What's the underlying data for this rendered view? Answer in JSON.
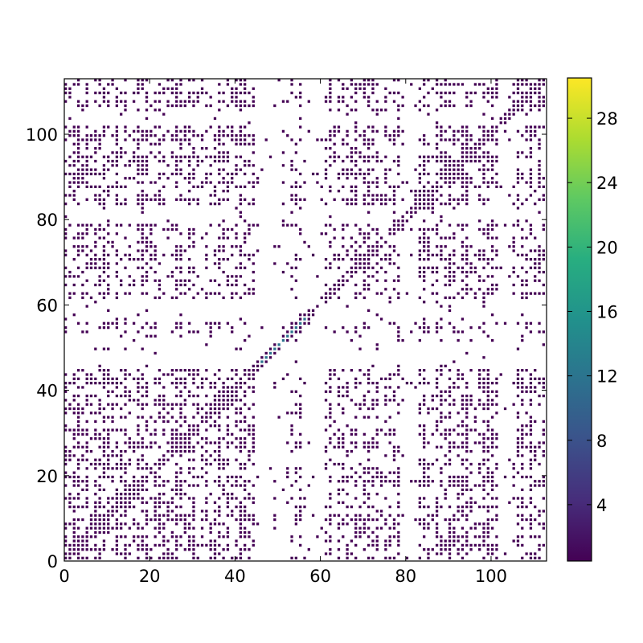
{
  "chart_data": {
    "type": "heatmap",
    "title": "",
    "xlabel": "",
    "ylabel": "",
    "xlim": [
      0,
      113
    ],
    "ylim": [
      0,
      113
    ],
    "xticks": [
      0,
      20,
      40,
      60,
      80,
      100
    ],
    "yticks": [
      0,
      20,
      40,
      60,
      80,
      100
    ],
    "colorbar": {
      "range": [
        0.5,
        30.5
      ],
      "ticks": [
        4,
        8,
        12,
        16,
        20,
        24,
        28
      ],
      "colormap": "viridis"
    },
    "background_color": "#ffffff",
    "dominant_cell_color": "#440154",
    "description_of_values": "Symmetric recurrence-style matrix; most plotted cells have value ~1, sparse larger values near the diagonal",
    "dense_blocks": [
      {
        "x": [
          25,
          29
        ],
        "y": [
          25,
          29
        ]
      },
      {
        "x": [
          55,
          57
        ],
        "y": [
          55,
          57
        ]
      },
      {
        "x": [
          82,
          86
        ],
        "y": [
          82,
          86
        ]
      },
      {
        "x": [
          77,
          79
        ],
        "y": [
          77,
          79
        ]
      },
      {
        "x": [
          14,
          17
        ],
        "y": [
          14,
          17
        ]
      },
      {
        "x": [
          36,
          39
        ],
        "y": [
          36,
          39
        ]
      }
    ],
    "white_bands": [
      [
        45,
        52
      ],
      [
        56,
        60
      ],
      [
        79,
        82
      ],
      [
        102,
        104
      ],
      [
        47,
        50
      ]
    ]
  }
}
